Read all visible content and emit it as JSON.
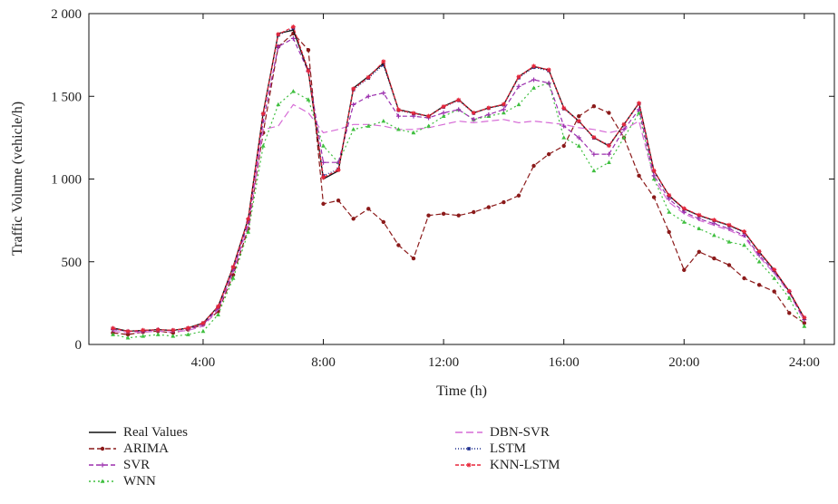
{
  "chart_data": {
    "type": "line",
    "title": "",
    "xlabel": "Time (h)",
    "ylabel": "Traffic Volume (vehicle/h)",
    "xlim": [
      0.2,
      25
    ],
    "ylim": [
      0,
      2000
    ],
    "x_ticks": [
      4,
      8,
      12,
      16,
      20,
      24
    ],
    "x_tick_labels": [
      "4:00",
      "8:00",
      "12:00",
      "16:00",
      "20:00",
      "24:00"
    ],
    "y_ticks": [
      0,
      500,
      1000,
      1500,
      2000
    ],
    "y_tick_labels": [
      "0",
      "500",
      "1 000",
      "1 500",
      "2 000"
    ],
    "grid": false,
    "legend_position": "below",
    "series": [
      {
        "name": "Real Values",
        "color": "#111111",
        "dash": "",
        "marker": "none",
        "x": [
          1,
          1.5,
          2,
          2.5,
          3,
          3.5,
          4,
          4.5,
          5,
          5.5,
          6,
          6.5,
          7,
          7.5,
          8,
          8.5,
          9,
          9.5,
          10,
          10.5,
          11,
          11.5,
          12,
          12.5,
          13,
          13.5,
          14,
          14.5,
          15,
          15.5,
          16,
          16.5,
          17,
          17.5,
          18,
          18.5,
          19,
          19.5,
          20,
          20.5,
          21,
          21.5,
          22,
          22.5,
          23,
          23.5,
          24
        ],
        "y": [
          100,
          80,
          85,
          90,
          85,
          100,
          130,
          230,
          470,
          760,
          1400,
          1880,
          1900,
          1650,
          1000,
          1050,
          1550,
          1620,
          1700,
          1420,
          1400,
          1380,
          1440,
          1480,
          1400,
          1430,
          1450,
          1620,
          1680,
          1660,
          1430,
          1350,
          1250,
          1200,
          1330,
          1460,
          1050,
          900,
          820,
          780,
          750,
          720,
          680,
          560,
          450,
          320,
          160
        ]
      },
      {
        "name": "ARIMA",
        "color": "#8b1a1a",
        "dash": "6,3",
        "marker": "circle",
        "x": [
          1,
          1.5,
          2,
          2.5,
          3,
          3.5,
          4,
          4.5,
          5,
          5.5,
          6,
          6.5,
          7,
          7.5,
          8,
          8.5,
          9,
          9.5,
          10,
          10.5,
          11,
          11.5,
          12,
          12.5,
          13,
          13.5,
          14,
          14.5,
          15,
          15.5,
          16,
          16.5,
          17,
          17.5,
          18,
          18.5,
          19,
          19.5,
          20,
          20.5,
          21,
          21.5,
          22,
          22.5,
          23,
          23.5,
          24
        ],
        "y": [
          70,
          60,
          75,
          80,
          70,
          90,
          120,
          200,
          420,
          700,
          1280,
          1800,
          1880,
          1780,
          850,
          870,
          760,
          820,
          740,
          600,
          520,
          780,
          790,
          780,
          800,
          830,
          860,
          900,
          1080,
          1150,
          1200,
          1380,
          1440,
          1400,
          1250,
          1020,
          890,
          680,
          450,
          560,
          520,
          480,
          400,
          360,
          320,
          190,
          130
        ]
      },
      {
        "name": "SVR",
        "color": "#9b2fae",
        "dash": "5,3",
        "marker": "cross",
        "x": [
          1,
          1.5,
          2,
          2.5,
          3,
          3.5,
          4,
          4.5,
          5,
          5.5,
          6,
          6.5,
          7,
          7.5,
          8,
          8.5,
          9,
          9.5,
          10,
          10.5,
          11,
          11.5,
          12,
          12.5,
          13,
          13.5,
          14,
          14.5,
          15,
          15.5,
          16,
          16.5,
          17,
          17.5,
          18,
          18.5,
          19,
          19.5,
          20,
          20.5,
          21,
          21.5,
          22,
          22.5,
          23,
          23.5,
          24
        ],
        "y": [
          90,
          80,
          80,
          90,
          85,
          95,
          120,
          220,
          450,
          740,
          1350,
          1800,
          1850,
          1650,
          1100,
          1100,
          1450,
          1500,
          1520,
          1380,
          1380,
          1370,
          1400,
          1420,
          1360,
          1390,
          1420,
          1560,
          1600,
          1580,
          1320,
          1250,
          1150,
          1150,
          1300,
          1420,
          1020,
          880,
          800,
          760,
          730,
          700,
          660,
          540,
          440,
          320,
          150
        ]
      },
      {
        "name": "WNN",
        "color": "#3fbf3f",
        "dash": "2,3",
        "marker": "triangle",
        "x": [
          1,
          1.5,
          2,
          2.5,
          3,
          3.5,
          4,
          4.5,
          5,
          5.5,
          6,
          6.5,
          7,
          7.5,
          8,
          8.5,
          9,
          9.5,
          10,
          10.5,
          11,
          11.5,
          12,
          12.5,
          13,
          13.5,
          14,
          14.5,
          15,
          15.5,
          16,
          16.5,
          17,
          17.5,
          18,
          18.5,
          19,
          19.5,
          20,
          20.5,
          21,
          21.5,
          22,
          22.5,
          23,
          23.5,
          24
        ],
        "y": [
          60,
          40,
          50,
          60,
          50,
          60,
          80,
          180,
          400,
          680,
          1200,
          1450,
          1530,
          1480,
          1200,
          1100,
          1300,
          1320,
          1350,
          1300,
          1280,
          1320,
          1380,
          1420,
          1360,
          1380,
          1400,
          1450,
          1550,
          1580,
          1250,
          1200,
          1050,
          1100,
          1250,
          1400,
          1000,
          800,
          740,
          700,
          660,
          620,
          600,
          500,
          400,
          280,
          110
        ]
      },
      {
        "name": "DBN-SVR",
        "color": "#d66bd6",
        "dash": "8,4",
        "marker": "none",
        "x": [
          1,
          1.5,
          2,
          2.5,
          3,
          3.5,
          4,
          4.5,
          5,
          5.5,
          6,
          6.5,
          7,
          7.5,
          8,
          8.5,
          9,
          9.5,
          10,
          10.5,
          11,
          11.5,
          12,
          12.5,
          13,
          13.5,
          14,
          14.5,
          15,
          15.5,
          16,
          16.5,
          17,
          17.5,
          18,
          18.5,
          19,
          19.5,
          20,
          20.5,
          21,
          21.5,
          22,
          22.5,
          23,
          23.5,
          24
        ],
        "y": [
          80,
          70,
          75,
          80,
          75,
          85,
          110,
          210,
          440,
          720,
          1300,
          1320,
          1450,
          1400,
          1280,
          1300,
          1330,
          1330,
          1320,
          1300,
          1300,
          1310,
          1330,
          1350,
          1340,
          1350,
          1360,
          1340,
          1350,
          1340,
          1330,
          1310,
          1300,
          1280,
          1300,
          1350,
          1000,
          860,
          790,
          750,
          720,
          690,
          650,
          530,
          430,
          310,
          140
        ]
      },
      {
        "name": "LSTM",
        "color": "#1f2f8f",
        "dash": "1,2",
        "marker": "square",
        "x": [
          1,
          1.5,
          2,
          2.5,
          3,
          3.5,
          4,
          4.5,
          5,
          5.5,
          6,
          6.5,
          7,
          7.5,
          8,
          8.5,
          9,
          9.5,
          10,
          10.5,
          11,
          11.5,
          12,
          12.5,
          13,
          13.5,
          14,
          14.5,
          15,
          15.5,
          16,
          16.5,
          17,
          17.5,
          18,
          18.5,
          19,
          19.5,
          20,
          20.5,
          21,
          21.5,
          22,
          22.5,
          23,
          23.5,
          24
        ],
        "y": [
          95,
          78,
          84,
          88,
          84,
          98,
          128,
          228,
          465,
          755,
          1390,
          1870,
          1910,
          1660,
          1020,
          1060,
          1540,
          1610,
          1690,
          1415,
          1395,
          1378,
          1435,
          1475,
          1398,
          1428,
          1448,
          1612,
          1675,
          1655,
          1425,
          1348,
          1248,
          1205,
          1328,
          1455,
          1048,
          898,
          818,
          778,
          748,
          718,
          678,
          558,
          448,
          318,
          158
        ]
      },
      {
        "name": "KNN-LSTM",
        "color": "#e8263a",
        "dash": "4,2",
        "marker": "star",
        "x": [
          1,
          1.5,
          2,
          2.5,
          3,
          3.5,
          4,
          4.5,
          5,
          5.5,
          6,
          6.5,
          7,
          7.5,
          8,
          8.5,
          9,
          9.5,
          10,
          10.5,
          11,
          11.5,
          12,
          12.5,
          13,
          13.5,
          14,
          14.5,
          15,
          15.5,
          16,
          16.5,
          17,
          17.5,
          18,
          18.5,
          19,
          19.5,
          20,
          20.5,
          21,
          21.5,
          22,
          22.5,
          23,
          23.5,
          24
        ],
        "y": [
          98,
          79,
          86,
          89,
          86,
          99,
          129,
          229,
          468,
          758,
          1395,
          1875,
          1920,
          1655,
          1010,
          1055,
          1545,
          1615,
          1710,
          1418,
          1398,
          1380,
          1438,
          1478,
          1400,
          1430,
          1452,
          1618,
          1682,
          1660,
          1428,
          1350,
          1252,
          1202,
          1330,
          1458,
          1050,
          902,
          822,
          782,
          752,
          722,
          682,
          562,
          452,
          322,
          162
        ]
      }
    ]
  },
  "legend": {
    "col1": [
      "Real Values",
      "ARIMA",
      "SVR",
      "WNN"
    ],
    "col2": [
      "DBN-SVR",
      "LSTM",
      "KNN-LSTM"
    ]
  }
}
